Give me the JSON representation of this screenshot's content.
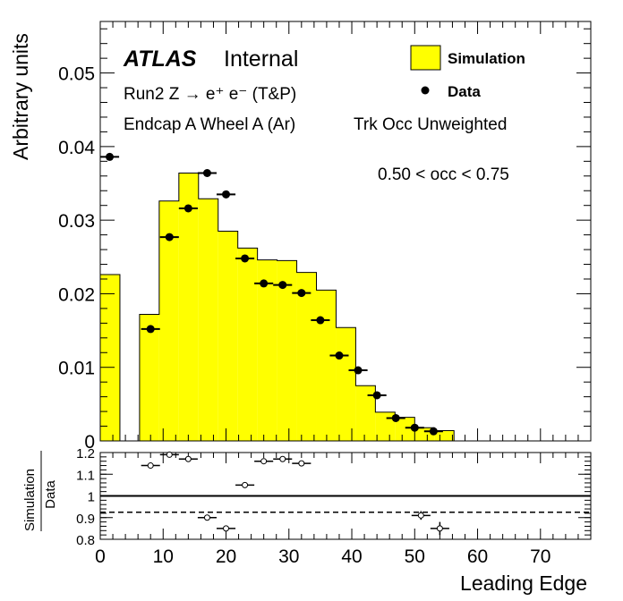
{
  "header": {
    "experiment": "ATLAS",
    "status": "Internal",
    "line1": "Run2 Z → e⁺ e⁻ (T&P)",
    "line2a": "Endcap A Wheel A (Ar)",
    "line2b": "Trk Occ Unweighted",
    "selection": "0.50 < occ < 0.75"
  },
  "legend": {
    "simulation": "Simulation",
    "data": "Data"
  },
  "colors": {
    "simulation_fill": "#ffff00",
    "line": "#000000"
  },
  "chart_data": [
    {
      "type": "histogram",
      "ylabel": "Arbitrary units",
      "xlim": [
        0,
        78
      ],
      "ylim": [
        0,
        0.057
      ],
      "yticks": [
        0,
        0.01,
        0.02,
        0.03,
        0.04,
        0.05
      ],
      "ytick_labels": [
        "0",
        "0.01",
        "0.02",
        "0.03",
        "0.04",
        "0.05"
      ],
      "series": [
        {
          "name": "Simulation",
          "style": "filled-histogram",
          "bin_edges": [
            0,
            3.125,
            6.25,
            9.375,
            12.5,
            15.625,
            18.75,
            21.875,
            25,
            28.125,
            31.25,
            34.375,
            37.5,
            40.625,
            43.75,
            46.875,
            50,
            53.125,
            56.25
          ],
          "values": [
            0.0226,
            0,
            0.0172,
            0.0326,
            0.0364,
            0.0329,
            0.0285,
            0.0262,
            0.0246,
            0.0245,
            0.0229,
            0.0205,
            0.0154,
            0.0075,
            0.0039,
            0.0032,
            0.0018,
            0.0014
          ]
        },
        {
          "name": "Data",
          "style": "points",
          "x": [
            1.5,
            8,
            11,
            14,
            17,
            20,
            23,
            26,
            29,
            32,
            35,
            38,
            41,
            44,
            47,
            50,
            53
          ],
          "y": [
            0.0386,
            0.0152,
            0.0277,
            0.0316,
            0.0364,
            0.0335,
            0.0248,
            0.0214,
            0.0212,
            0.0201,
            0.0164,
            0.0116,
            0.0096,
            0.0062,
            0.0031,
            0.0018,
            0.0013
          ]
        }
      ]
    },
    {
      "type": "scatter",
      "xlabel": "Leading Edge",
      "ylabel_numerator": "Simulation",
      "ylabel_denominator": "Data",
      "xlim": [
        0,
        78
      ],
      "ylim": [
        0.8,
        1.2
      ],
      "xticks": [
        0,
        10,
        20,
        30,
        40,
        50,
        60,
        70
      ],
      "xtick_labels": [
        "0",
        "10",
        "20",
        "30",
        "40",
        "50",
        "60",
        "70"
      ],
      "yticks": [
        0.8,
        0.9,
        1.0,
        1.1,
        1.2
      ],
      "ytick_labels": [
        "0.8",
        "0.9",
        "1",
        "1.1",
        "1.2"
      ],
      "reference_lines": [
        {
          "y": 1.0,
          "style": "solid"
        },
        {
          "y": 0.925,
          "style": "dashed"
        }
      ],
      "points": {
        "x": [
          8,
          11,
          14,
          17,
          20,
          23,
          26,
          29,
          32,
          51,
          54
        ],
        "y": [
          1.14,
          1.19,
          1.17,
          0.9,
          0.85,
          1.05,
          1.16,
          1.17,
          1.15,
          0.91,
          0.85
        ],
        "yerr": [
          0,
          0,
          0,
          0,
          0,
          0,
          0,
          0,
          0,
          0.02,
          0.03
        ]
      }
    }
  ]
}
